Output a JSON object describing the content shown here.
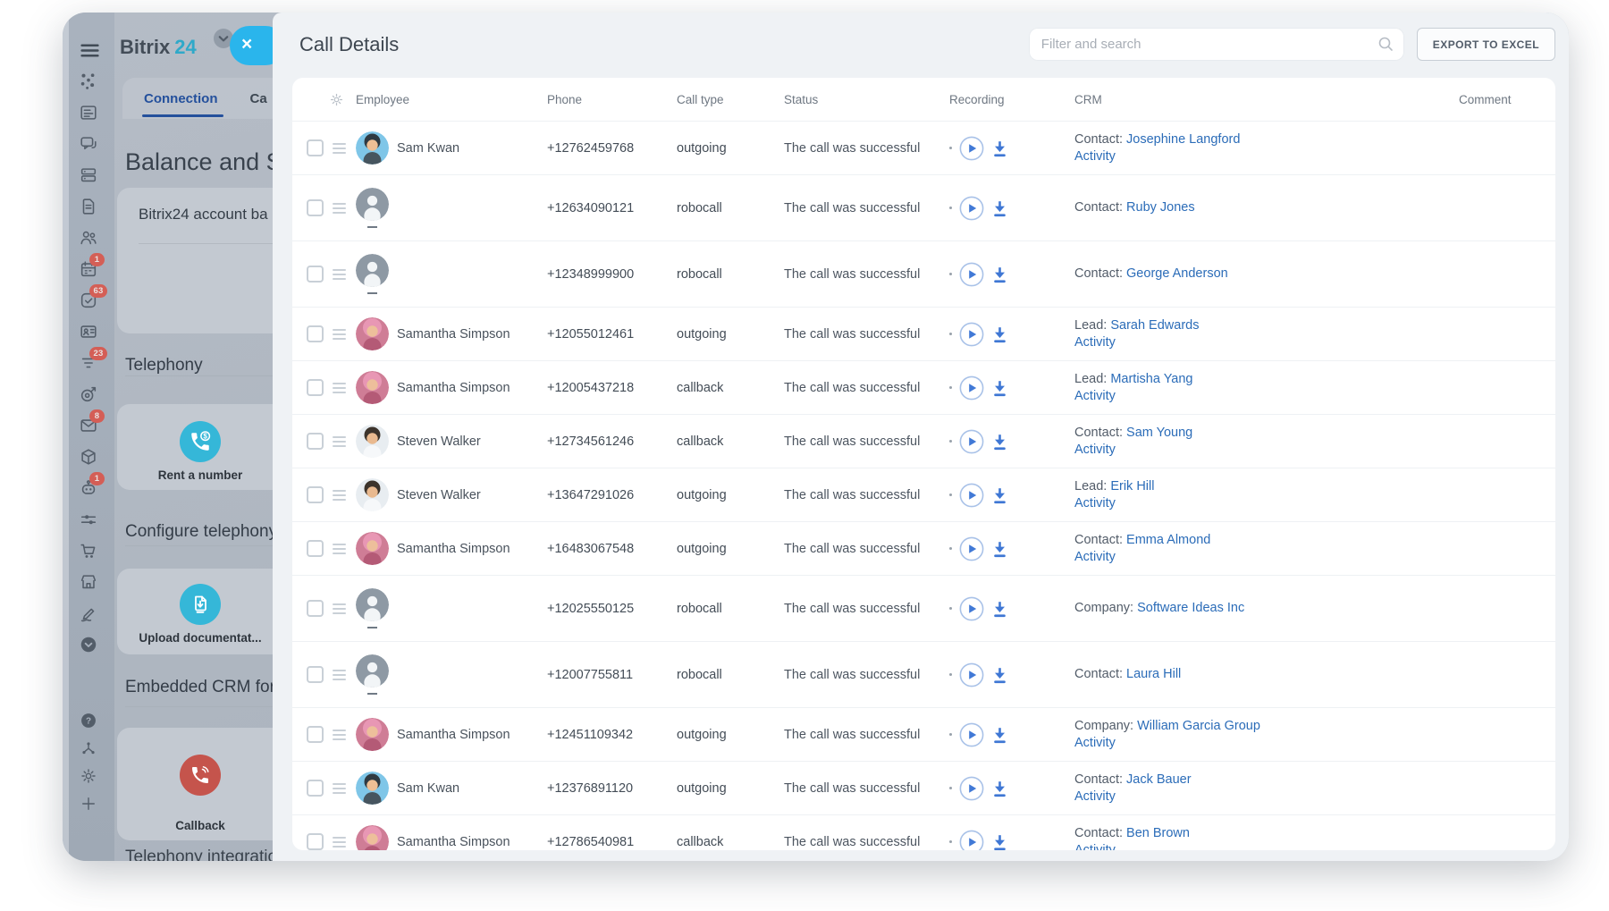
{
  "colors": {
    "accent_cyan": "#2ab5ec",
    "tool_icon_cyan": "#35b7d8",
    "tool_icon_red": "#c5544c",
    "link_blue": "#2b6cb8",
    "badge_red": "#db5449",
    "tab_active_blue": "#24509c"
  },
  "icons_glossary": {
    "close_icon": "×",
    "search_icon": "magnifier",
    "settings_icon": "gear"
  },
  "header": {
    "logo_part1": "Bitrix",
    "logo_part2": "24"
  },
  "sidebar": {
    "icons": [
      {
        "name": "apps"
      },
      {
        "name": "feed"
      },
      {
        "name": "chat"
      },
      {
        "name": "drive"
      },
      {
        "name": "document"
      },
      {
        "name": "people"
      },
      {
        "name": "calendar",
        "badge": "1"
      },
      {
        "name": "tasks",
        "badge": "63"
      },
      {
        "name": "contact-card"
      },
      {
        "name": "crm-funnel",
        "badge": "23"
      },
      {
        "name": "marketing-target"
      },
      {
        "name": "mail",
        "badge": "8"
      },
      {
        "name": "product-box"
      },
      {
        "name": "copilot-robot",
        "badge": "1"
      },
      {
        "name": "automation-sliders"
      },
      {
        "name": "shop-cart"
      },
      {
        "name": "store"
      },
      {
        "name": "sign"
      },
      {
        "name": "more-chevron"
      }
    ],
    "bottom_icons": [
      {
        "name": "help"
      },
      {
        "name": "network"
      },
      {
        "name": "settings-gear"
      },
      {
        "name": "add-plus"
      }
    ]
  },
  "left_panel": {
    "tabs": [
      {
        "label": "Connection",
        "active": true
      },
      {
        "label": "Ca",
        "active": false
      }
    ],
    "page_title": "Balance and St",
    "account_card_text": "Bitrix24 account ba",
    "sections": [
      {
        "heading": "Telephony",
        "card_label": "Rent a number",
        "icon": "phone-dollar",
        "icon_color": "#35b7d8"
      },
      {
        "heading": "Configure telephony",
        "card_label": "Upload documentat...",
        "icon": "document-upload",
        "icon_color": "#35b7d8"
      },
      {
        "heading": "Embedded CRM form",
        "card_label": "Callback",
        "icon": "phone-callback",
        "icon_color": "#c5544c"
      }
    ],
    "footer": "Telephony integration"
  },
  "panel": {
    "title": "Call Details",
    "search_placeholder": "Filter and search",
    "export_label": "EXPORT TO EXCEL"
  },
  "table": {
    "columns": [
      "Employee",
      "Phone",
      "Call type",
      "Status",
      "Recording",
      "CRM",
      "Comment"
    ],
    "rows": [
      {
        "employee": "Sam Kwan",
        "avatar": "sam-kwan",
        "phone": "+12762459768",
        "call_type": "outgoing",
        "status": "The call was successful",
        "crm_label": "Contact:",
        "crm_name": "Josephine Langford",
        "activity": "Activity"
      },
      {
        "employee": "",
        "avatar": "placeholder",
        "phone": "+12634090121",
        "call_type": "robocall",
        "status": "The call was successful",
        "crm_label": "Contact:",
        "crm_name": "Ruby Jones"
      },
      {
        "employee": "",
        "avatar": "placeholder",
        "phone": "+12348999900",
        "call_type": "robocall",
        "status": "The call was successful",
        "crm_label": "Contact:",
        "crm_name": "George Anderson"
      },
      {
        "employee": "Samantha Simpson",
        "avatar": "samantha-simpson",
        "phone": "+12055012461",
        "call_type": "outgoing",
        "status": "The call was successful",
        "crm_label": "Lead:",
        "crm_name": "Sarah Edwards",
        "activity": "Activity"
      },
      {
        "employee": "Samantha Simpson",
        "avatar": "samantha-simpson",
        "phone": "+12005437218",
        "call_type": "callback",
        "status": "The call was successful",
        "crm_label": "Lead:",
        "crm_name": "Martisha Yang",
        "activity": "Activity"
      },
      {
        "employee": "Steven Walker",
        "avatar": "steven-walker",
        "phone": "+12734561246",
        "call_type": "callback",
        "status": "The call was successful",
        "crm_label": "Contact:",
        "crm_name": "Sam Young",
        "activity": "Activity"
      },
      {
        "employee": "Steven Walker",
        "avatar": "steven-walker",
        "phone": "+13647291026",
        "call_type": "outgoing",
        "status": "The call was successful",
        "crm_label": "Lead:",
        "crm_name": "Erik Hill",
        "activity": "Activity"
      },
      {
        "employee": "Samantha Simpson",
        "avatar": "samantha-simpson",
        "phone": "+16483067548",
        "call_type": "outgoing",
        "status": "The call was successful",
        "crm_label": "Contact:",
        "crm_name": "Emma Almond",
        "activity": "Activity"
      },
      {
        "employee": "",
        "avatar": "placeholder",
        "phone": "+12025550125",
        "call_type": "robocall",
        "status": "The call was successful",
        "crm_label": "Company:",
        "crm_name": "Software Ideas Inc"
      },
      {
        "employee": "",
        "avatar": "placeholder",
        "phone": "+12007755811",
        "call_type": "robocall",
        "status": "The call was successful",
        "crm_label": "Contact:",
        "crm_name": "Laura Hill"
      },
      {
        "employee": "Samantha Simpson",
        "avatar": "samantha-simpson",
        "phone": "+12451109342",
        "call_type": "outgoing",
        "status": "The call was successful",
        "crm_label": "Company:",
        "crm_name": "William Garcia Group",
        "activity": "Activity"
      },
      {
        "employee": "Sam Kwan",
        "avatar": "sam-kwan",
        "phone": "+12376891120",
        "call_type": "outgoing",
        "status": "The call was successful",
        "crm_label": "Contact:",
        "crm_name": "Jack Bauer",
        "activity": "Activity"
      },
      {
        "employee": "Samantha Simpson",
        "avatar": "samantha-simpson",
        "phone": "+12786540981",
        "call_type": "callback",
        "status": "The call was successful",
        "crm_label": "Contact:",
        "crm_name": "Ben Brown",
        "activity": "Activity"
      }
    ]
  }
}
